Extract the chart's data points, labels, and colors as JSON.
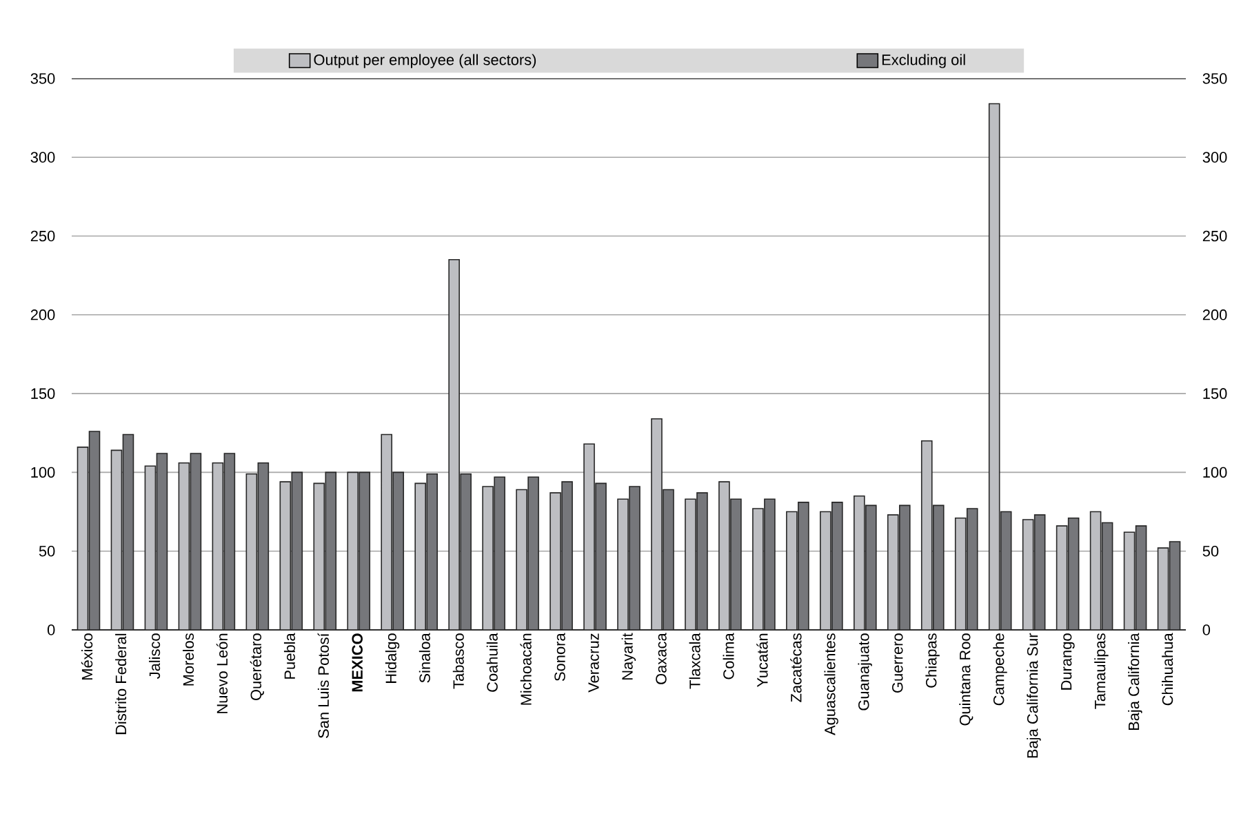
{
  "chart_data": {
    "type": "bar",
    "categories": [
      "México",
      "Distrito Federal",
      "Jalisco",
      "Morelos",
      "Nuevo León",
      "Querétaro",
      "Puebla",
      "San Luis Potosí",
      "**MEXICO**",
      "Hidalgo",
      "Sinaloa",
      "Tabasco",
      "Coahuila",
      "Michoacán",
      "Sonora",
      "Veracruz",
      "Nayarit",
      "Oaxaca",
      "Tlaxcala",
      "Colima",
      "Yucatán",
      "Zacatécas",
      "Aguascalientes",
      "Guanajuato",
      "Guerrero",
      "Chiapas",
      "Quintana Roo",
      "Campeche",
      "Baja California Sur",
      "Durango",
      "Tamaulipas",
      "Baja California",
      "Chihuahua"
    ],
    "series": [
      {
        "name": "Output per employee (all sectors)",
        "color": "#bdbec2",
        "values": [
          116,
          114,
          104,
          106,
          106,
          99,
          94,
          93,
          100,
          124,
          93,
          235,
          91,
          89,
          87,
          118,
          83,
          134,
          83,
          94,
          77,
          75,
          75,
          85,
          73,
          120,
          71,
          334,
          70,
          66,
          75,
          62,
          52
        ]
      },
      {
        "name": "Excluding oil",
        "color": "#76777b",
        "values": [
          126,
          124,
          112,
          112,
          112,
          106,
          100,
          100,
          100,
          100,
          99,
          99,
          97,
          97,
          94,
          93,
          91,
          89,
          87,
          83,
          83,
          81,
          81,
          79,
          79,
          79,
          77,
          75,
          73,
          71,
          68,
          66,
          56
        ]
      }
    ],
    "ylim": [
      0,
      350
    ],
    "yticks": [
      0,
      50,
      100,
      150,
      200,
      250,
      300,
      350
    ],
    "y2lim": [
      0,
      350
    ],
    "y2ticks": [
      0,
      50,
      100,
      150,
      200,
      250,
      300,
      350
    ],
    "grid": "y",
    "legend": "top"
  }
}
